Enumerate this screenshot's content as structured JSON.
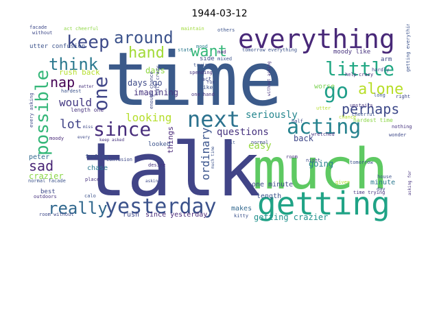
{
  "title": "1944-03-12",
  "words": [
    {
      "text": "time",
      "color": "#3b5a8a"
    },
    {
      "text": "talk",
      "color": "#414487"
    },
    {
      "text": "much",
      "color": "#5ec962"
    },
    {
      "text": "getting",
      "color": "#20a386"
    },
    {
      "text": "everything",
      "color": "#482878"
    },
    {
      "text": "yesterday",
      "color": "#3b528b"
    },
    {
      "text": "acting",
      "color": "#26828e"
    },
    {
      "text": "since",
      "color": "#472d7b"
    },
    {
      "text": "possible",
      "color": "#35b779"
    },
    {
      "text": "next",
      "color": "#2c728e"
    },
    {
      "text": "really",
      "color": "#31688e"
    },
    {
      "text": "keep",
      "color": "#3e4a89"
    },
    {
      "text": "little",
      "color": "#22a884"
    },
    {
      "text": "around",
      "color": "#3b528b"
    },
    {
      "text": "go",
      "color": "#1f9e89"
    },
    {
      "text": "alone",
      "color": "#b8de29"
    },
    {
      "text": "one",
      "color": "#404688"
    },
    {
      "text": "think",
      "color": "#2a788e"
    },
    {
      "text": "perhaps",
      "color": "#3e4a89"
    },
    {
      "text": "want",
      "color": "#35b779"
    },
    {
      "text": "hand",
      "color": "#a2da37"
    },
    {
      "text": "sad",
      "color": "#482475"
    },
    {
      "text": "nap",
      "color": "#440154"
    },
    {
      "text": "lot",
      "color": "#404387"
    },
    {
      "text": "looking",
      "color": "#b5de2b"
    },
    {
      "text": "would",
      "color": "#443983"
    },
    {
      "text": "seriously",
      "color": "#24868e"
    },
    {
      "text": "questions",
      "color": "#46327e"
    },
    {
      "text": "ordinary",
      "color": "#3a548c"
    },
    {
      "text": "getting crazier",
      "color": "#21918c"
    },
    {
      "text": "days",
      "color": "#8fd744"
    },
    {
      "text": "days go",
      "color": "#3e4a89"
    },
    {
      "text": "imagining",
      "color": "#46337e"
    },
    {
      "text": "easy",
      "color": "#95d840"
    },
    {
      "text": "back",
      "color": "#3f4788"
    },
    {
      "text": "going",
      "color": "#26828e"
    },
    {
      "text": "peter",
      "color": "#31688e"
    },
    {
      "text": "crazier",
      "color": "#8bd646"
    },
    {
      "text": "rush back",
      "color": "#b5de2b"
    },
    {
      "text": "rush",
      "color": "#3f4889"
    },
    {
      "text": "since yesterday",
      "color": "#482878"
    },
    {
      "text": "one minute",
      "color": "#3e4989"
    },
    {
      "text": "minute",
      "color": "#2a788e"
    },
    {
      "text": "length",
      "color": "#3b528b"
    },
    {
      "text": "length one",
      "color": "#46327e"
    },
    {
      "text": "makes",
      "color": "#31688e"
    },
    {
      "text": "things",
      "color": "#482878"
    },
    {
      "text": "chase",
      "color": "#2a788e"
    },
    {
      "text": "looked",
      "color": "#3b528b"
    },
    {
      "text": "best",
      "color": "#3e4989"
    },
    {
      "text": "worse",
      "color": "#7ad151"
    },
    {
      "text": "moody",
      "color": "#482878"
    },
    {
      "text": "moody like",
      "color": "#46327e"
    },
    {
      "text": "arm",
      "color": "#3e4989"
    },
    {
      "text": "hardest time",
      "color": "#8bd646"
    },
    {
      "text": "tomorrow everything",
      "color": "#3b528b"
    },
    {
      "text": "state",
      "color": "#2a788e"
    },
    {
      "text": "mood",
      "color": "#26828e"
    },
    {
      "text": "side",
      "color": "#3e4989"
    },
    {
      "text": "trying",
      "color": "#3b528b"
    },
    {
      "text": "spending",
      "color": "#46327e"
    },
    {
      "text": "act",
      "color": "#3e4989"
    },
    {
      "text": "like",
      "color": "#3b528b"
    },
    {
      "text": "mad",
      "color": "#482878"
    },
    {
      "text": "mixed",
      "color": "#3b528b"
    },
    {
      "text": "half",
      "color": "#3e4989"
    },
    {
      "text": "fun",
      "color": "#3e4989"
    },
    {
      "text": "one hand",
      "color": "#46327e"
    },
    {
      "text": "maintain",
      "color": "#9fda3a"
    },
    {
      "text": "others",
      "color": "#3b528b"
    },
    {
      "text": "facade",
      "color": "#3e4989"
    },
    {
      "text": "act cheerful",
      "color": "#8fd744"
    },
    {
      "text": "without",
      "color": "#3e4989"
    },
    {
      "text": "utter confusion",
      "color": "#3b528b"
    },
    {
      "text": "utter",
      "color": "#b5de2b"
    },
    {
      "text": "cheerful",
      "color": "#3b528b"
    },
    {
      "text": "hardly",
      "color": "#3e4989"
    },
    {
      "text": "help",
      "color": "#46327e"
    },
    {
      "text": "crazy",
      "color": "#482878"
    },
    {
      "text": "right",
      "color": "#3e4989"
    },
    {
      "text": "long",
      "color": "#3b528b"
    },
    {
      "text": "nothing",
      "color": "#46327e"
    },
    {
      "text": "wonder",
      "color": "#3e4989"
    },
    {
      "text": "wretched",
      "color": "#46327e"
    },
    {
      "text": "tomorrow",
      "color": "#3b528b"
    },
    {
      "text": "night",
      "color": "#3e4989"
    },
    {
      "text": "room",
      "color": "#46327e"
    },
    {
      "text": "house",
      "color": "#3b528b"
    },
    {
      "text": "day",
      "color": "#3e4989"
    },
    {
      "text": "given",
      "color": "#b5de2b"
    },
    {
      "text": "time trying",
      "color": "#46327e"
    },
    {
      "text": "kitty",
      "color": "#3b528b"
    },
    {
      "text": "normal",
      "color": "#3e4989"
    },
    {
      "text": "normal facade",
      "color": "#3b528b"
    },
    {
      "text": "outdoors",
      "color": "#46327e"
    },
    {
      "text": "room without",
      "color": "#3e4989"
    },
    {
      "text": "feeling",
      "color": "#3b528b"
    },
    {
      "text": "place",
      "color": "#46327e"
    },
    {
      "text": "confusion",
      "color": "#3e4989"
    },
    {
      "text": "calo",
      "color": "#3b528b"
    },
    {
      "text": "every asking",
      "color": "#3e4989"
    },
    {
      "text": "desire",
      "color": "#46327e"
    },
    {
      "text": "enough",
      "color": "#3b528b"
    },
    {
      "text": "enough chance",
      "color": "#3e4989"
    },
    {
      "text": "matter",
      "color": "#46327e"
    },
    {
      "text": "hardest",
      "color": "#3b528b"
    },
    {
      "text": "half crazy",
      "color": "#3e4989"
    },
    {
      "text": "without asking",
      "color": "#46327e"
    },
    {
      "text": "getting everything",
      "color": "#3b528b"
    },
    {
      "text": "asking",
      "color": "#3e4989"
    },
    {
      "text": "asking for",
      "color": "#46327e"
    },
    {
      "text": "much time",
      "color": "#3b528b"
    },
    {
      "text": "time upstairs",
      "color": "#3e4989"
    },
    {
      "text": "upstairs",
      "color": "#46327e"
    },
    {
      "text": "chance",
      "color": "#b5de2b"
    },
    {
      "text": "miss",
      "color": "#3e4989"
    },
    {
      "text": "sit",
      "color": "#3b528b"
    },
    {
      "text": "every",
      "color": "#3e4989"
    },
    {
      "text": "keep asked",
      "color": "#46327e"
    }
  ]
}
